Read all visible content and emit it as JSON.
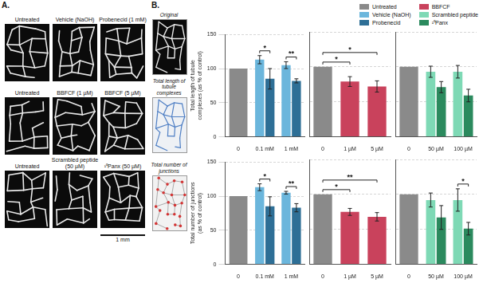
{
  "panels": {
    "A": {
      "letter": "A.",
      "images": [
        "Untreated",
        "Vehicle (NaOH)",
        "Probenecid (1 mM)",
        "Untreated",
        "BBFCF (1 µM)",
        "BBFCF (5 µM)",
        "Untreated",
        "Scrambled peptide (50 µM)",
        "¹⁰Panx (50 µM)"
      ],
      "scale_bar": "1 mm"
    },
    "B": {
      "letter": "B.",
      "schematic": [
        "Original",
        "Total length of tubule complexes",
        "Total number of junctions"
      ]
    }
  },
  "chart_data": [
    {
      "type": "bar",
      "y_label": "Total length of tubule complexes (as % of control)",
      "categories": [
        "0",
        "0.1 mM",
        "1 mM"
      ],
      "series": [
        {
          "name": "Untreated",
          "color": "#8a8a8a",
          "values": [
            100,
            null,
            null
          ]
        },
        {
          "name": "Vehicle (NaOH)",
          "color": "#6bb6dc",
          "values": [
            null,
            113,
            105
          ],
          "errors": [
            null,
            6,
            5
          ]
        },
        {
          "name": "Probenecid",
          "color": "#2e6f96",
          "values": [
            null,
            85,
            82
          ],
          "errors": [
            null,
            15,
            3
          ]
        }
      ],
      "significance": [
        {
          "from": {
            "series": "Vehicle (NaOH)",
            "category": "0.1 mM"
          },
          "to": {
            "series": "Probenecid",
            "category": "0.1 mM"
          },
          "label": "*"
        },
        {
          "from": {
            "series": "Vehicle (NaOH)",
            "category": "1 mM"
          },
          "to": {
            "series": "Probenecid",
            "category": "1 mM"
          },
          "label": "**"
        }
      ],
      "ylim": [
        0,
        150
      ],
      "yticks": [
        0,
        50,
        100,
        150
      ],
      "grid": true,
      "legend": "top right"
    },
    {
      "type": "bar",
      "tick_labels": "x",
      "categories": [
        "0",
        "1 µM",
        "5 µM"
      ],
      "series": [
        {
          "name": "Untreated",
          "color": "#8a8a8a",
          "values": [
            100,
            null,
            null
          ]
        },
        {
          "name": "BBFCF",
          "color": "#c9425c",
          "values": [
            null,
            79,
            72
          ],
          "errors": [
            null,
            7,
            8
          ]
        }
      ],
      "significance": [
        {
          "from": {
            "series": "Untreated",
            "category": "0"
          },
          "to": {
            "series": "BBFCF",
            "category": "1 µM"
          },
          "label": "*"
        },
        {
          "from": {
            "series": "Untreated",
            "category": "0"
          },
          "to": {
            "series": "BBFCF",
            "category": "5 µM"
          },
          "label": "*"
        }
      ],
      "ylim": [
        0,
        150
      ],
      "yticks": [
        0,
        50,
        100,
        150
      ],
      "grid": true,
      "legend": "top right"
    },
    {
      "type": "bar",
      "tick_labels": "x",
      "categories": [
        "0",
        "50 µM",
        "100 µM"
      ],
      "series": [
        {
          "name": "Untreated",
          "color": "#8a8a8a",
          "values": [
            100,
            null,
            null
          ]
        },
        {
          "name": "Scrambled peptide",
          "color": "#7ed9b5",
          "values": [
            null,
            93,
            93
          ],
          "errors": [
            null,
            8,
            9
          ]
        },
        {
          "name": "¹⁰Panx",
          "color": "#2b8a5e",
          "values": [
            null,
            71,
            59
          ],
          "errors": [
            null,
            8,
            9
          ]
        }
      ],
      "significance": [],
      "ylim": [
        0,
        150
      ],
      "yticks": [
        0,
        50,
        100,
        150
      ],
      "grid": true,
      "legend": "top right"
    },
    {
      "type": "bar",
      "y_label": "Total number of junctions (as % of control)",
      "categories": [
        "0",
        "0.1 mM",
        "1 mM"
      ],
      "series": [
        {
          "name": "Untreated",
          "color": "#8a8a8a",
          "values": [
            100,
            null,
            null
          ]
        },
        {
          "name": "Vehicle (NaOH)",
          "color": "#6bb6dc",
          "values": [
            null,
            113,
            105
          ],
          "errors": [
            null,
            5,
            2
          ]
        },
        {
          "name": "Probenecid",
          "color": "#2e6f96",
          "values": [
            null,
            85,
            83
          ],
          "errors": [
            null,
            14,
            6
          ]
        }
      ],
      "significance": [
        {
          "from": {
            "series": "Vehicle (NaOH)",
            "category": "0.1 mM"
          },
          "to": {
            "series": "Probenecid",
            "category": "0.1 mM"
          },
          "label": "*"
        },
        {
          "from": {
            "series": "Vehicle (NaOH)",
            "category": "1 mM"
          },
          "to": {
            "series": "Probenecid",
            "category": "1 mM"
          },
          "label": "**"
        }
      ],
      "ylim": [
        0,
        150
      ],
      "yticks": [
        0,
        50,
        100,
        150
      ],
      "grid": true,
      "legend": "top right"
    },
    {
      "type": "bar",
      "tick_labels": "x",
      "categories": [
        "0",
        "1 µM",
        "5 µM"
      ],
      "series": [
        {
          "name": "Untreated",
          "color": "#8a8a8a",
          "values": [
            100,
            null,
            null
          ]
        },
        {
          "name": "BBFCF",
          "color": "#c9425c",
          "values": [
            null,
            75,
            68
          ],
          "errors": [
            null,
            5,
            6
          ]
        }
      ],
      "significance": [
        {
          "from": {
            "series": "Untreated",
            "category": "0"
          },
          "to": {
            "series": "BBFCF",
            "category": "1 µM"
          },
          "label": "*"
        },
        {
          "from": {
            "series": "Untreated",
            "category": "0"
          },
          "to": {
            "series": "BBFCF",
            "category": "5 µM"
          },
          "label": "**"
        }
      ],
      "ylim": [
        0,
        150
      ],
      "yticks": [
        0,
        50,
        100,
        150
      ],
      "grid": true,
      "legend": "top right"
    },
    {
      "type": "bar",
      "tick_labels": "x",
      "categories": [
        "0",
        "50 µM",
        "100 µM"
      ],
      "series": [
        {
          "name": "Untreated",
          "color": "#8a8a8a",
          "values": [
            100,
            null,
            null
          ]
        },
        {
          "name": "Scrambled peptide",
          "color": "#7ed9b5",
          "values": [
            null,
            92,
            92
          ],
          "errors": [
            null,
            10,
            16
          ]
        },
        {
          "name": "¹⁰Panx",
          "color": "#2b8a5e",
          "values": [
            null,
            67,
            51
          ],
          "errors": [
            null,
            17,
            9
          ]
        }
      ],
      "significance": [
        {
          "from": {
            "series": "Scrambled peptide",
            "category": "100 µM"
          },
          "to": {
            "series": "¹⁰Panx",
            "category": "100 µM"
          },
          "label": "*"
        }
      ],
      "ylim": [
        0,
        150
      ],
      "yticks": [
        0,
        50,
        100,
        150
      ],
      "grid": true,
      "legend": "top right"
    }
  ]
}
